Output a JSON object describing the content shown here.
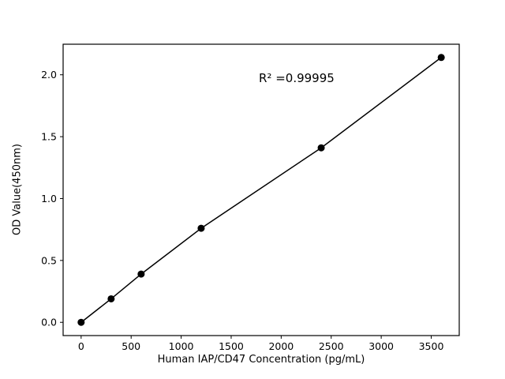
{
  "chart_data": {
    "type": "scatter",
    "title": "",
    "xlabel": "Human IAP/CD47 Concentration (pg/mL)",
    "ylabel": "OD Value(450nm)",
    "annotation": "R² =0.99995",
    "x": [
      0,
      300,
      600,
      1200,
      2400,
      3600
    ],
    "y": [
      0.0,
      0.19,
      0.39,
      0.76,
      1.41,
      2.14
    ],
    "line_through_points": true,
    "xticks": [
      0,
      500,
      1000,
      1500,
      2000,
      2500,
      3000,
      3500
    ],
    "yticks": [
      0.0,
      0.5,
      1.0,
      1.5,
      2.0
    ],
    "xlim": [
      -180,
      3780
    ],
    "ylim": [
      -0.107,
      2.247
    ],
    "grid": false,
    "legend": "none",
    "marker_color": "#000000",
    "line_color": "#000000",
    "background_color": "#ffffff"
  }
}
